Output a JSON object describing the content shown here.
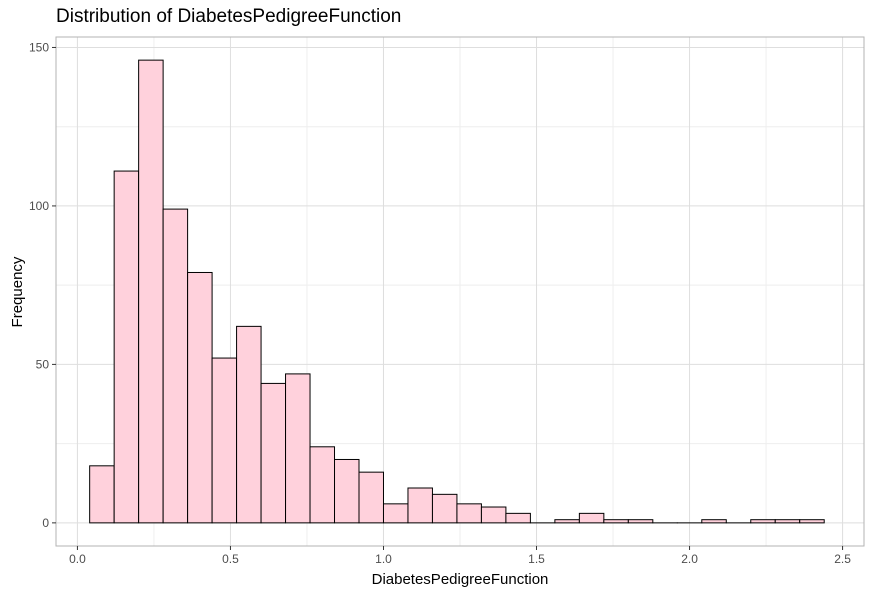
{
  "chart_data": {
    "type": "bar",
    "title": "Distribution of DiabetesPedigreeFunction",
    "xlabel": "DiabetesPedigreeFunction",
    "ylabel": "Frequency",
    "bin_width": 0.08,
    "bins": [
      {
        "start": 0.04,
        "count": 18
      },
      {
        "start": 0.12,
        "count": 111
      },
      {
        "start": 0.2,
        "count": 146
      },
      {
        "start": 0.28,
        "count": 99
      },
      {
        "start": 0.36,
        "count": 79
      },
      {
        "start": 0.44,
        "count": 52
      },
      {
        "start": 0.52,
        "count": 62
      },
      {
        "start": 0.6,
        "count": 44
      },
      {
        "start": 0.68,
        "count": 47
      },
      {
        "start": 0.76,
        "count": 24
      },
      {
        "start": 0.84,
        "count": 20
      },
      {
        "start": 0.92,
        "count": 16
      },
      {
        "start": 1.0,
        "count": 6
      },
      {
        "start": 1.08,
        "count": 11
      },
      {
        "start": 1.16,
        "count": 9
      },
      {
        "start": 1.24,
        "count": 6
      },
      {
        "start": 1.32,
        "count": 5
      },
      {
        "start": 1.4,
        "count": 3
      },
      {
        "start": 1.48,
        "count": 0
      },
      {
        "start": 1.56,
        "count": 1
      },
      {
        "start": 1.64,
        "count": 3
      },
      {
        "start": 1.72,
        "count": 1
      },
      {
        "start": 1.8,
        "count": 1
      },
      {
        "start": 1.88,
        "count": 0
      },
      {
        "start": 1.96,
        "count": 0
      },
      {
        "start": 2.04,
        "count": 1
      },
      {
        "start": 2.12,
        "count": 0
      },
      {
        "start": 2.2,
        "count": 1
      },
      {
        "start": 2.28,
        "count": 1
      },
      {
        "start": 2.36,
        "count": 1
      }
    ],
    "xlim": [
      -0.07,
      2.57
    ],
    "ylim": [
      -7.3,
      153.3
    ],
    "x_ticks": [
      {
        "value": 0.0,
        "label": "0.0"
      },
      {
        "value": 0.5,
        "label": "0.5"
      },
      {
        "value": 1.0,
        "label": "1.0"
      },
      {
        "value": 1.5,
        "label": "1.5"
      },
      {
        "value": 2.0,
        "label": "2.0"
      },
      {
        "value": 2.5,
        "label": "2.5"
      }
    ],
    "y_ticks": [
      {
        "value": 0,
        "label": "0"
      },
      {
        "value": 50,
        "label": "50"
      },
      {
        "value": 100,
        "label": "100"
      },
      {
        "value": 150,
        "label": "150"
      }
    ],
    "grid": true,
    "colors": {
      "bar_fill": "#ffd1dc",
      "bar_stroke": "#000000",
      "grid_major": "#dedede",
      "grid_minor": "#eeeeee",
      "panel_border": "#b3b3b3"
    }
  }
}
